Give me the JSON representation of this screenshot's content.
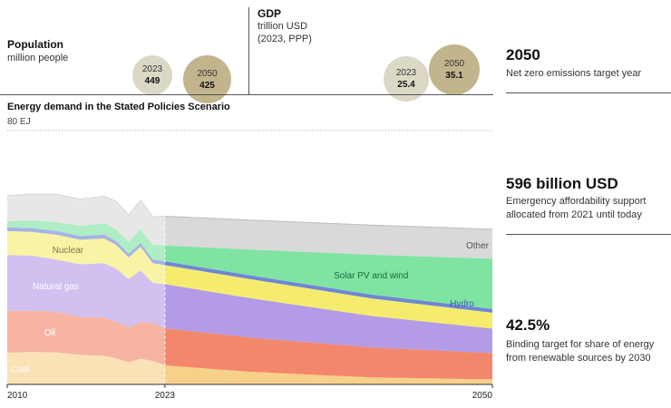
{
  "population": {
    "title": "Population",
    "unit": "million people",
    "bubbles": [
      {
        "year": "2023",
        "value": "449"
      },
      {
        "year": "2050",
        "value": "425"
      }
    ]
  },
  "gdp": {
    "title": "GDP",
    "unit": "trillion USD",
    "basis": "(2023, PPP)",
    "bubbles": [
      {
        "year": "2023",
        "value": "25.4"
      },
      {
        "year": "2050",
        "value": "35.1"
      }
    ]
  },
  "stats": [
    {
      "value": "2050",
      "label_lines": [
        "Net zero emissions target year"
      ]
    },
    {
      "value": "596 billion USD",
      "label_lines": [
        "Emergency affordability support",
        "allocated from 2021 until today"
      ]
    },
    {
      "value": "42.5%",
      "label_lines": [
        "Binding target for share of energy",
        "from renewable sources by 2030"
      ]
    }
  ],
  "colors": {
    "coal": "#f7d08a",
    "oil": "#f2876b",
    "natural_gas": "#b39be8",
    "nuclear": "#f5ec6e",
    "hydro": "#6f86d6",
    "solar_wind": "#7fe3a2",
    "other": "#d9d9d9",
    "bubble_2023": "#dcd8c6",
    "bubble_2050": "#c2b58e",
    "hist_overlay": "rgba(255,255,255,0.38)"
  },
  "chart_data": {
    "type": "area",
    "title": "Energy demand in the Stated Policies Scenario",
    "ylabel": "80 EJ",
    "ylim": [
      0,
      80
    ],
    "x": [
      2010,
      2012,
      2014,
      2016,
      2018,
      2019,
      2020,
      2021,
      2022,
      2023,
      2030,
      2040,
      2050
    ],
    "x_tick_labels": [
      "2010",
      "2023",
      "2050"
    ],
    "stacked": true,
    "series": [
      {
        "name": "Coal",
        "values": [
          10.0,
          10.2,
          10.1,
          9.3,
          9.0,
          8.2,
          7.0,
          8.1,
          7.4,
          6.0,
          4.0,
          2.2,
          1.6
        ]
      },
      {
        "name": "Oil",
        "values": [
          13.2,
          13.0,
          12.8,
          12.0,
          12.1,
          11.6,
          11.0,
          11.6,
          12.0,
          11.7,
          10.8,
          9.5,
          8.3
        ]
      },
      {
        "name": "Natural gas",
        "values": [
          17.6,
          17.4,
          16.5,
          16.6,
          17.1,
          16.6,
          15.2,
          16.2,
          12.6,
          13.9,
          12.4,
          9.9,
          7.7
        ]
      },
      {
        "name": "Nuclear",
        "values": [
          7.5,
          7.5,
          7.8,
          7.7,
          7.8,
          7.5,
          6.8,
          7.5,
          6.2,
          6.0,
          6.0,
          5.5,
          5.0
        ]
      },
      {
        "name": "Hydro",
        "values": [
          1.2,
          1.2,
          1.2,
          1.2,
          1.2,
          1.2,
          1.2,
          1.2,
          1.2,
          1.2,
          1.2,
          1.2,
          1.2
        ]
      },
      {
        "name": "Solar PV and wind",
        "values": [
          2.0,
          2.4,
          2.8,
          3.2,
          3.6,
          3.8,
          3.8,
          4.4,
          4.6,
          5.0,
          8.1,
          12.6,
          15.8
        ]
      },
      {
        "name": "Other",
        "values": [
          8.0,
          8.3,
          8.8,
          8.4,
          8.5,
          8.7,
          8.4,
          9.0,
          8.8,
          9.2,
          9.3,
          9.3,
          9.3
        ]
      }
    ],
    "labels": [
      "Coal",
      "Oil",
      "Natural gas",
      "Nuclear",
      "Hydro",
      "Solar PV and wind",
      "Other"
    ]
  }
}
